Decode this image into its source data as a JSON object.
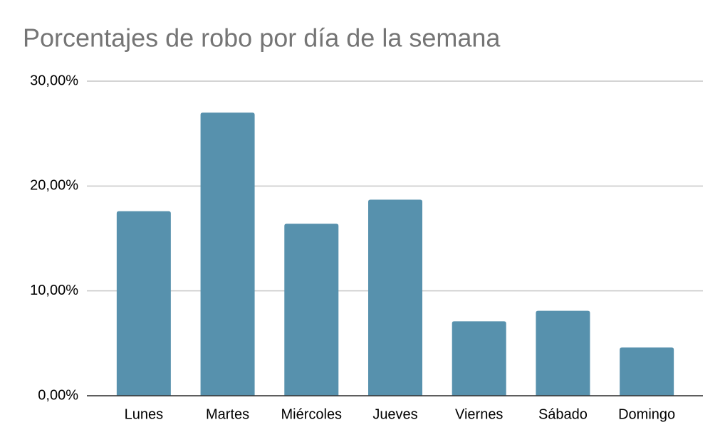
{
  "chart_data": {
    "type": "bar",
    "title": "Porcentajes de robo por día de la semana",
    "categories": [
      "Lunes",
      "Martes",
      "Miércoles",
      "Jueves",
      "Viernes",
      "Sábado",
      "Domingo"
    ],
    "values": [
      17.6,
      27.0,
      16.4,
      18.7,
      7.1,
      8.1,
      4.6
    ],
    "color": "#5791ad",
    "ylim": [
      0,
      30
    ],
    "yticks": [
      {
        "value": 0,
        "label": "0,00%"
      },
      {
        "value": 10,
        "label": "10,00%"
      },
      {
        "value": 20,
        "label": "20,00%"
      },
      {
        "value": 30,
        "label": "30,00%"
      }
    ],
    "grid": true
  }
}
